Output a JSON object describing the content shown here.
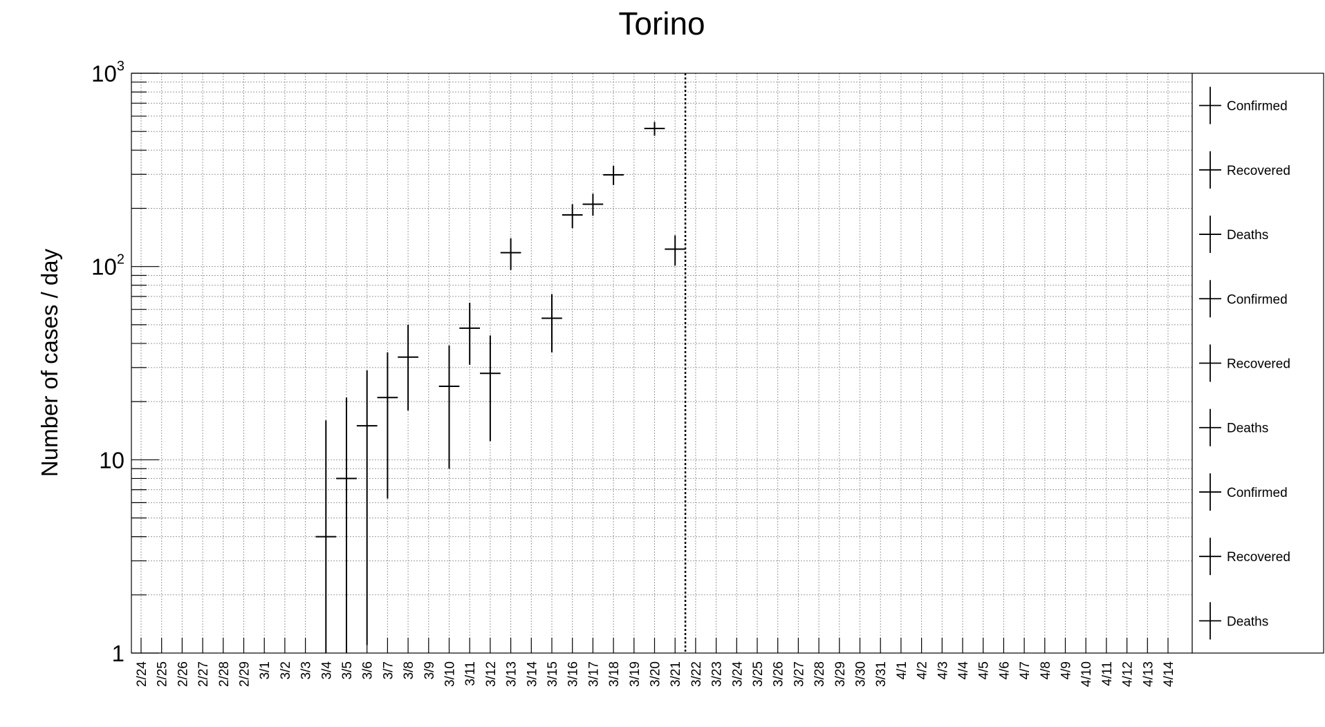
{
  "chart_data": {
    "type": "scatter",
    "title": "Torino",
    "xlabel": "",
    "ylabel": "Number of cases / day",
    "yscale": "log",
    "ylim": [
      1,
      1000
    ],
    "y_tick_labels": [
      {
        "value": 1,
        "base": "1",
        "exp": ""
      },
      {
        "value": 10,
        "base": "10",
        "exp": ""
      },
      {
        "value": 100,
        "base": "10",
        "exp": "2"
      },
      {
        "value": 1000,
        "base": "10",
        "exp": "3"
      }
    ],
    "categories": [
      "2/24",
      "2/25",
      "2/26",
      "2/27",
      "2/28",
      "2/29",
      "3/1",
      "3/2",
      "3/3",
      "3/4",
      "3/5",
      "3/6",
      "3/7",
      "3/8",
      "3/9",
      "3/10",
      "3/11",
      "3/12",
      "3/13",
      "3/14",
      "3/15",
      "3/16",
      "3/17",
      "3/18",
      "3/19",
      "3/20",
      "3/21",
      "3/22",
      "3/23",
      "3/24",
      "3/25",
      "3/26",
      "3/27",
      "3/28",
      "3/29",
      "3/30",
      "3/31",
      "4/1",
      "4/2",
      "4/3",
      "4/4",
      "4/5",
      "4/6",
      "4/7",
      "4/8",
      "4/9",
      "4/10",
      "4/11",
      "4/12",
      "4/13",
      "4/14"
    ],
    "grid": true,
    "vertical_marker_after": "3/21",
    "series": [
      {
        "name": "Confirmed",
        "points": [
          {
            "x": "3/4",
            "y": 4,
            "ylow": 1,
            "yhigh": 16
          },
          {
            "x": "3/5",
            "y": 8,
            "ylow": 1,
            "yhigh": 21
          },
          {
            "x": "3/6",
            "y": 15,
            "ylow": 1.1,
            "yhigh": 29
          },
          {
            "x": "3/7",
            "y": 21,
            "ylow": 6.3,
            "yhigh": 36
          },
          {
            "x": "3/8",
            "y": 34,
            "ylow": 18,
            "yhigh": 50
          },
          {
            "x": "3/10",
            "y": 24,
            "ylow": 9,
            "yhigh": 39
          },
          {
            "x": "3/11",
            "y": 48,
            "ylow": 31,
            "yhigh": 65
          },
          {
            "x": "3/12",
            "y": 28,
            "ylow": 12.5,
            "yhigh": 44
          },
          {
            "x": "3/13",
            "y": 118,
            "ylow": 96,
            "yhigh": 140
          },
          {
            "x": "3/15",
            "y": 54,
            "ylow": 36,
            "yhigh": 72
          },
          {
            "x": "3/16",
            "y": 185,
            "ylow": 158,
            "yhigh": 210
          },
          {
            "x": "3/17",
            "y": 210,
            "ylow": 183,
            "yhigh": 238
          },
          {
            "x": "3/18",
            "y": 298,
            "ylow": 264,
            "yhigh": 332
          },
          {
            "x": "3/20",
            "y": 518,
            "ylow": 475,
            "yhigh": 560
          },
          {
            "x": "3/21",
            "y": 123,
            "ylow": 101,
            "yhigh": 145
          }
        ]
      }
    ],
    "legend": {
      "placement": "right",
      "entries": [
        "Confirmed",
        "Recovered",
        "Deaths",
        "Confirmed",
        "Recovered",
        "Deaths",
        "Confirmed",
        "Recovered",
        "Deaths"
      ]
    }
  }
}
